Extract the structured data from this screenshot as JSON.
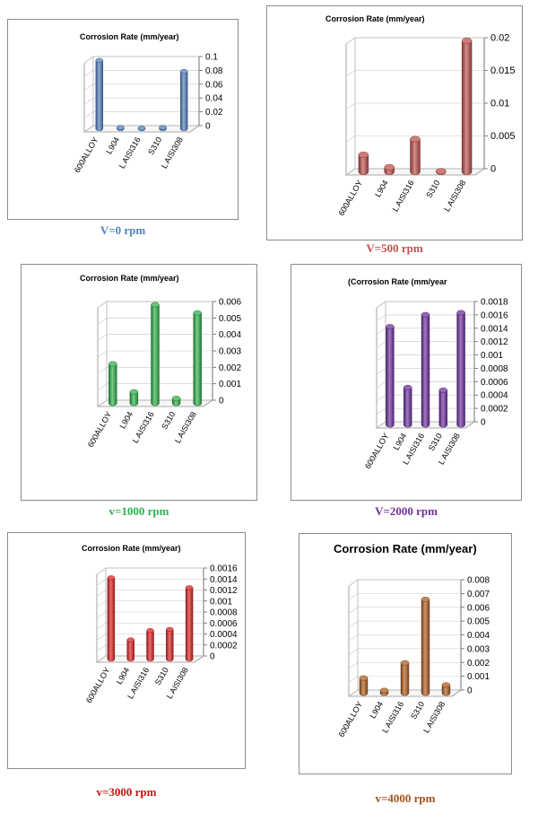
{
  "colors": {
    "blue": "#4f81bd",
    "red": "#c0504d",
    "green": "#2db34a",
    "purple": "#7030a0",
    "bright_red": "#e02020",
    "brown": "#b35d1e"
  },
  "chart_data": [
    {
      "type": "bar",
      "title": "Corrosion Rate (mm/year)",
      "caption": "V=0 rpm",
      "color": "#4f81bd",
      "caption_color": "#4f81bd",
      "categories": [
        "600ALLOY",
        "L904",
        "L AISI316",
        "S310",
        "L AISI308"
      ],
      "values": [
        0.099,
        0.002,
        0.001,
        0.002,
        0.083
      ],
      "ylim": [
        0,
        0.1
      ],
      "ticks": [
        "0",
        "0.02",
        "0.04",
        "0.06",
        "0.08",
        "0.1"
      ]
    },
    {
      "type": "bar",
      "title": "Corrosion Rate (mm/year)",
      "caption": "V=500 rpm",
      "color": "#c0504d",
      "caption_color": "#c0504d",
      "categories": [
        "600ALLOY",
        "L904",
        "L AISI316",
        "S310",
        "L AISI308"
      ],
      "values": [
        0.0026,
        0.0007,
        0.005,
        0.0001,
        0.02
      ],
      "ylim": [
        0,
        0.02
      ],
      "ticks": [
        "0",
        "0.005",
        "0.01",
        "0.015",
        "0.02"
      ]
    },
    {
      "type": "bar",
      "title": "Corrosion Rate (mm/year)",
      "caption": "v=1000 rpm",
      "color": "#2db34a",
      "caption_color": "#2db34a",
      "categories": [
        "600ALLOY",
        "L904",
        "L AISI316",
        "S310",
        "L AISI308"
      ],
      "values": [
        0.0024,
        0.0007,
        0.006,
        0.0003,
        0.0055
      ],
      "ylim": [
        0,
        0.006
      ],
      "ticks": [
        "0",
        "0.001",
        "0.002",
        "0.003",
        "0.004",
        "0.005",
        "0.006"
      ]
    },
    {
      "type": "bar",
      "title": "(Corrosion Rate (mm/year",
      "caption": "V=2000 rpm",
      "color": "#7030a0",
      "caption_color": "#7030a0",
      "categories": [
        "600ALLOY",
        "L904",
        "L AISI316",
        "S310",
        "L AISI308"
      ],
      "values": [
        0.00147,
        0.00056,
        0.00165,
        0.00052,
        0.00168
      ],
      "ylim": [
        0,
        0.0018
      ],
      "ticks": [
        "0",
        "0.0002",
        "0.0004",
        "0.0006",
        "0.0008",
        "0.001",
        "0.0012",
        "0.0014",
        "0.0016",
        "0.0018"
      ]
    },
    {
      "type": "bar",
      "title": "Corrosion Rate (mm/year)",
      "caption": "v=3000 rpm",
      "color": "#e02020",
      "caption_color": "#d01010",
      "categories": [
        "600ALLOY",
        "L904",
        "L AISI316",
        "S310",
        "L AISI308"
      ],
      "values": [
        0.00148,
        0.00035,
        0.00052,
        0.00054,
        0.0013
      ],
      "ylim": [
        0,
        0.0016
      ],
      "ticks": [
        "0",
        "0.0002",
        "0.0004",
        "0.0006",
        "0.0008",
        "0.001",
        "0.0012",
        "0.0014",
        "0.0016"
      ]
    },
    {
      "type": "bar",
      "title": "Corrosion Rate (mm/year)",
      "caption": "v=4000 rpm",
      "color": "#b35d1e",
      "caption_color": "#a0531e",
      "categories": [
        "600ALLOY",
        "L904",
        "L AISI316",
        "S310",
        "L AISI308"
      ],
      "values": [
        0.0011,
        0.0002,
        0.0022,
        0.0068,
        0.0006
      ],
      "ylim": [
        0,
        0.008
      ],
      "ticks": [
        "0",
        "0.001",
        "0.002",
        "0.003",
        "0.004",
        "0.005",
        "0.006",
        "0.007",
        "0.008"
      ]
    }
  ]
}
